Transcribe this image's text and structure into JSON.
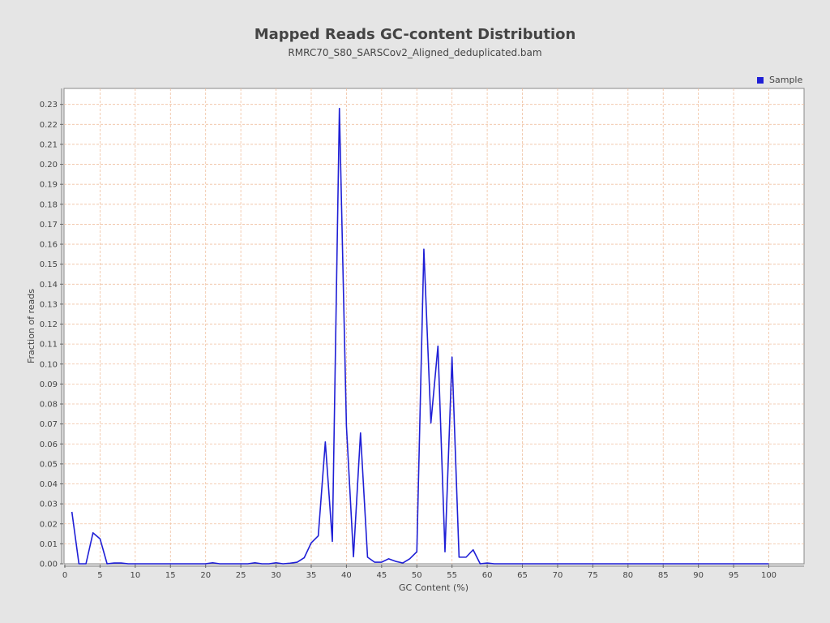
{
  "chart_data": {
    "type": "line",
    "title": "Mapped Reads GC-content Distribution",
    "subtitle": "RMRC70_S80_SARSCov2_Aligned_deduplicated.bam",
    "xlabel": "GC Content (%)",
    "ylabel": "Fraction of reads",
    "xlim": [
      0,
      105
    ],
    "ylim": [
      0,
      0.24
    ],
    "x_ticks": [
      "0",
      "5",
      "10",
      "15",
      "20",
      "25",
      "30",
      "35",
      "40",
      "45",
      "50",
      "55",
      "60",
      "65",
      "70",
      "75",
      "80",
      "85",
      "90",
      "95",
      "100"
    ],
    "y_ticks": [
      "0.00",
      "0.01",
      "0.02",
      "0.03",
      "0.04",
      "0.05",
      "0.06",
      "0.07",
      "0.08",
      "0.09",
      "0.10",
      "0.11",
      "0.12",
      "0.13",
      "0.14",
      "0.15",
      "0.16",
      "0.17",
      "0.18",
      "0.19",
      "0.20",
      "0.21",
      "0.22",
      "0.23"
    ],
    "grid": true,
    "legend_position": "top-right",
    "colors": {
      "series": "#1f1fd6",
      "grid": "#f0c0a0",
      "background": "#e5e5e5",
      "plot_background": "#ffffff"
    },
    "series": [
      {
        "name": "Sample",
        "x": [
          1,
          2,
          3,
          4,
          5,
          6,
          7,
          8,
          9,
          10,
          11,
          12,
          13,
          14,
          15,
          16,
          17,
          18,
          19,
          20,
          21,
          22,
          23,
          24,
          25,
          26,
          27,
          28,
          29,
          30,
          31,
          32,
          33,
          34,
          35,
          36,
          37,
          38,
          39,
          40,
          41,
          42,
          43,
          44,
          45,
          46,
          47,
          48,
          49,
          50,
          51,
          52,
          53,
          54,
          55,
          56,
          57,
          58,
          59,
          60,
          61,
          62,
          63,
          64,
          65,
          66,
          67,
          68,
          69,
          70,
          71,
          72,
          73,
          74,
          75,
          76,
          77,
          78,
          79,
          80,
          81,
          82,
          83,
          84,
          85,
          86,
          87,
          88,
          89,
          90,
          91,
          92,
          93,
          94,
          95,
          96,
          97,
          98,
          99,
          100
        ],
        "y": [
          0.026,
          0.0,
          0.0,
          0.0155,
          0.0125,
          0.0,
          0.0004,
          0.0004,
          0.0,
          0.0,
          0.0,
          0.0,
          0.0,
          0.0,
          0.0,
          0.0,
          0.0,
          0.0,
          0.0,
          0.0,
          0.0005,
          0.0,
          0.0,
          0.0,
          0.0,
          0.0,
          0.0005,
          0.0,
          0.0,
          0.0005,
          0.0,
          0.0003,
          0.0008,
          0.003,
          0.0105,
          0.014,
          0.061,
          0.0112,
          0.228,
          0.069,
          0.0035,
          0.0655,
          0.0033,
          0.0008,
          0.0008,
          0.0025,
          0.0012,
          0.0004,
          0.0025,
          0.006,
          0.1575,
          0.0705,
          0.109,
          0.006,
          0.1035,
          0.0033,
          0.0033,
          0.007,
          0.0,
          0.0004,
          0.0,
          0.0,
          0.0,
          0.0,
          0.0,
          0.0,
          0.0,
          0.0,
          0.0,
          0.0,
          0.0,
          0.0,
          0.0,
          0.0,
          0.0,
          0.0,
          0.0,
          0.0,
          0.0,
          0.0,
          0.0,
          0.0,
          0.0,
          0.0,
          0.0,
          0.0,
          0.0,
          0.0,
          0.0,
          0.0,
          0.0,
          0.0,
          0.0,
          0.0,
          0.0,
          0.0,
          0.0,
          0.0,
          0.0,
          0.0
        ]
      }
    ]
  }
}
